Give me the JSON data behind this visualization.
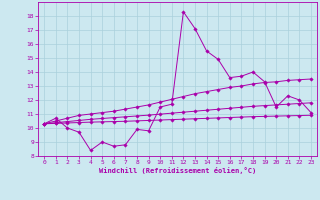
{
  "xlabel": "Windchill (Refroidissement éolien,°C)",
  "background_color": "#cce8f0",
  "grid_color": "#aad0dc",
  "line_color": "#aa00aa",
  "xlim": [
    -0.5,
    23.5
  ],
  "ylim": [
    8,
    19
  ],
  "xticks": [
    0,
    1,
    2,
    3,
    4,
    5,
    6,
    7,
    8,
    9,
    10,
    11,
    12,
    13,
    14,
    15,
    16,
    17,
    18,
    19,
    20,
    21,
    22,
    23
  ],
  "yticks": [
    8,
    9,
    10,
    11,
    12,
    13,
    14,
    15,
    16,
    17,
    18
  ],
  "series": {
    "line1": {
      "x": [
        0,
        1,
        2,
        3,
        4,
        5,
        6,
        7,
        8,
        9,
        10,
        11,
        12,
        13,
        14,
        15,
        16,
        17,
        18,
        19,
        20,
        21,
        22,
        23
      ],
      "y": [
        10.3,
        10.7,
        10.0,
        9.7,
        8.4,
        9.0,
        8.7,
        8.8,
        9.9,
        9.8,
        11.5,
        11.7,
        18.3,
        17.1,
        15.5,
        14.9,
        13.6,
        13.7,
        14.0,
        13.3,
        11.5,
        12.3,
        12.0,
        11.1
      ]
    },
    "line2": {
      "x": [
        0,
        1,
        2,
        3,
        4,
        5,
        6,
        7,
        8,
        9,
        10,
        11,
        12,
        13,
        14,
        15,
        16,
        17,
        18,
        19,
        20,
        21,
        22,
        23
      ],
      "y": [
        10.3,
        10.5,
        10.7,
        10.9,
        11.0,
        11.1,
        11.2,
        11.35,
        11.5,
        11.65,
        11.85,
        12.05,
        12.25,
        12.45,
        12.6,
        12.75,
        12.9,
        13.0,
        13.15,
        13.25,
        13.3,
        13.4,
        13.45,
        13.5
      ]
    },
    "line3": {
      "x": [
        0,
        1,
        2,
        3,
        4,
        5,
        6,
        7,
        8,
        9,
        10,
        11,
        12,
        13,
        14,
        15,
        16,
        17,
        18,
        19,
        20,
        21,
        22,
        23
      ],
      "y": [
        10.3,
        10.38,
        10.46,
        10.54,
        10.62,
        10.68,
        10.74,
        10.8,
        10.86,
        10.92,
        10.99,
        11.06,
        11.13,
        11.2,
        11.27,
        11.34,
        11.41,
        11.48,
        11.55,
        11.6,
        11.65,
        11.7,
        11.75,
        11.8
      ]
    },
    "line4": {
      "x": [
        0,
        1,
        2,
        3,
        4,
        5,
        6,
        7,
        8,
        9,
        10,
        11,
        12,
        13,
        14,
        15,
        16,
        17,
        18,
        19,
        20,
        21,
        22,
        23
      ],
      "y": [
        10.3,
        10.33,
        10.36,
        10.39,
        10.42,
        10.44,
        10.46,
        10.48,
        10.51,
        10.54,
        10.57,
        10.6,
        10.63,
        10.66,
        10.69,
        10.72,
        10.75,
        10.78,
        10.81,
        10.83,
        10.85,
        10.87,
        10.89,
        10.91
      ]
    }
  }
}
